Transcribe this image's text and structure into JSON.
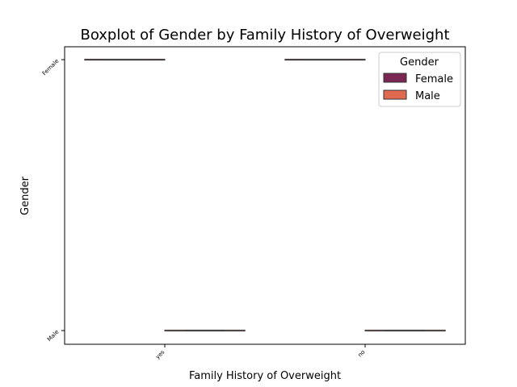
{
  "chart_data": {
    "type": "boxplot",
    "title": "Boxplot of Gender by Family History of Overweight",
    "xlabel": "Family History of Overweight",
    "ylabel": "Gender",
    "categories": [
      "yes",
      "no"
    ],
    "y_categories": [
      "Female",
      "Male"
    ],
    "grid": false,
    "legend": {
      "title": "Gender",
      "placement": "top-right"
    },
    "series": [
      {
        "name": "Female",
        "color": "#7a2753",
        "values": [
          "Female",
          "Female"
        ]
      },
      {
        "name": "Male",
        "color": "#e06a50",
        "values": [
          "Male",
          "Male"
        ]
      }
    ]
  }
}
